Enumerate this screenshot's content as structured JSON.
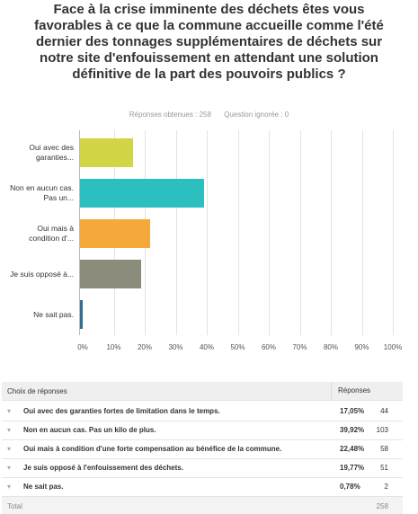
{
  "title": "Face à la crise imminente des déchets êtes vous favorables à ce que la commune accueille comme l'été dernier des tonnages supplémentaires de déchets sur notre site d'enfouissement en attendant une solution définitive de la part des pouvoirs publics ?",
  "stats": {
    "answered": "Réponses obtenues : 258",
    "skipped": "Question ignorée : 0"
  },
  "chart_data": {
    "type": "bar",
    "orientation": "horizontal",
    "categories": [
      "Oui avec des garanties...",
      "Non en aucun cas. Pas un...",
      "Oui mais à condition d'...",
      "Je suis opposé à...",
      "Ne sait pas."
    ],
    "values": [
      17.05,
      39.92,
      22.48,
      19.77,
      0.78
    ],
    "colors": [
      "#d2d646",
      "#2bbfbf",
      "#f4a93a",
      "#8c8c7c",
      "#2f6f8f"
    ],
    "xlim": [
      0,
      100
    ],
    "xticks": [
      {
        "value": 0,
        "label": "0%"
      },
      {
        "value": 10,
        "label": "10%"
      },
      {
        "value": 20,
        "label": "20%"
      },
      {
        "value": 30,
        "label": "30%"
      },
      {
        "value": 40,
        "label": "40%"
      },
      {
        "value": 50,
        "label": "50%"
      },
      {
        "value": 60,
        "label": "60%"
      },
      {
        "value": 70,
        "label": "70%"
      },
      {
        "value": 80,
        "label": "80%"
      },
      {
        "value": 90,
        "label": "90%"
      },
      {
        "value": 100,
        "label": "100%"
      }
    ],
    "grid": true
  },
  "table": {
    "header": [
      "Choix de réponses",
      "Réponses"
    ],
    "rows": [
      [
        "Oui avec des garanties fortes de limitation dans le temps.",
        "17,05%",
        "44"
      ],
      [
        "Non en aucun cas. Pas un kilo de plus.",
        "39,92%",
        "103"
      ],
      [
        "Oui mais à condition d'une forte compensation au bénéfice de la commune.",
        "22,48%",
        "58"
      ],
      [
        "Je suis opposé à l'enfouissement des déchets.",
        "19,77%",
        "51"
      ],
      [
        "Ne sait pas.",
        "0,78%",
        "2"
      ]
    ],
    "total": [
      "Total",
      "258"
    ]
  }
}
